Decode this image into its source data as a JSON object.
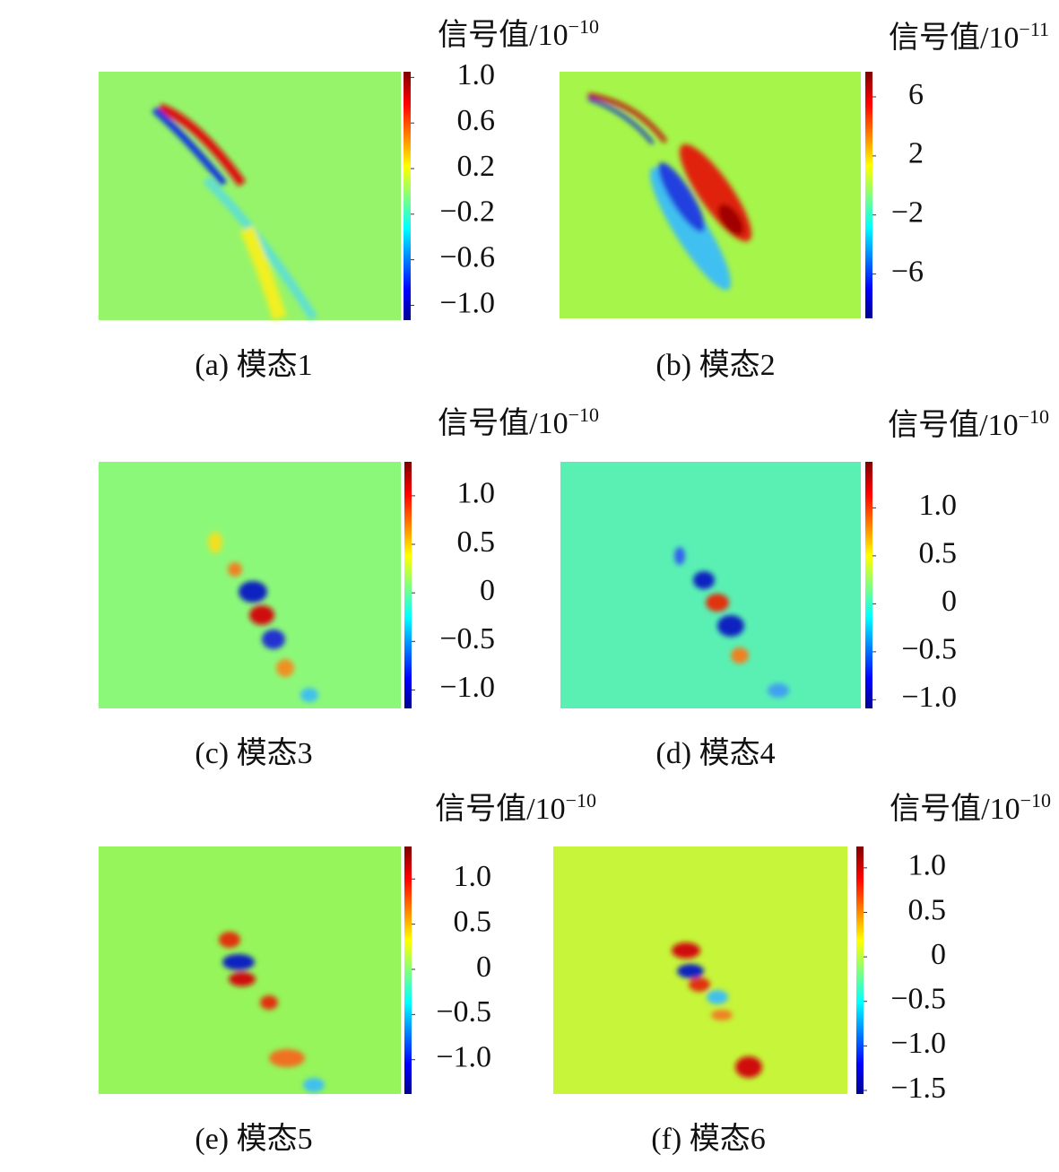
{
  "chart_data": [
    {
      "type": "heatmap",
      "caption": "(a) 模态1",
      "colorbar_label": "信号值/10",
      "colorbar_exponent": "−10",
      "clim": [
        -1.13,
        1.05
      ],
      "cticks": [
        {
          "value": 1.0,
          "label": "1.0"
        },
        0.6,
        0.2,
        {
          "value": -0.2,
          "label": "−0.2"
        },
        {
          "value": -0.6,
          "label": "−0.6"
        },
        {
          "value": -1.0,
          "label": "−1.0"
        }
      ]
    },
    {
      "type": "heatmap",
      "caption": "(b) 模态2",
      "colorbar_label": "信号值/10",
      "colorbar_exponent": "−11",
      "clim": [
        -9.0,
        7.7
      ],
      "cticks": [
        6,
        2,
        {
          "value": -2,
          "label": "−2"
        },
        {
          "value": -6,
          "label": "−6"
        }
      ]
    },
    {
      "type": "heatmap",
      "caption": "(c) 模态3",
      "colorbar_label": "信号值/10",
      "colorbar_exponent": "−10",
      "clim": [
        -1.19,
        1.35
      ],
      "cticks": [
        {
          "value": 1.0,
          "label": "1.0"
        },
        0.5,
        0,
        {
          "value": -0.5,
          "label": "−0.5"
        },
        {
          "value": -1.0,
          "label": "−1.0"
        }
      ]
    },
    {
      "type": "heatmap",
      "caption": "(d) 模态4",
      "colorbar_label": "信号值/10",
      "colorbar_exponent": "−10",
      "clim": [
        -1.09,
        1.48
      ],
      "cticks": [
        {
          "value": 1.0,
          "label": "1.0"
        },
        0.5,
        0,
        {
          "value": -0.5,
          "label": "−0.5"
        },
        {
          "value": -1.0,
          "label": "−1.0"
        }
      ]
    },
    {
      "type": "heatmap",
      "caption": "(e) 模态5",
      "colorbar_label": "信号值/10",
      "colorbar_exponent": "−10",
      "clim": [
        -1.38,
        1.36
      ],
      "cticks": [
        {
          "value": 1.0,
          "label": "1.0"
        },
        0.5,
        0,
        {
          "value": -0.5,
          "label": "−0.5"
        },
        {
          "value": -1.0,
          "label": "−1.0"
        }
      ]
    },
    {
      "type": "heatmap",
      "caption": "(f) 模态6",
      "colorbar_label": "信号值/10",
      "colorbar_exponent": "−10",
      "clim": [
        -1.54,
        1.24
      ],
      "cticks": [
        {
          "value": 1.0,
          "label": "1.0"
        },
        0.5,
        0,
        {
          "value": -0.5,
          "label": "−0.5"
        },
        {
          "value": -1.0,
          "label": "−1.0"
        },
        {
          "value": -1.5,
          "label": "−1.5"
        }
      ]
    }
  ]
}
